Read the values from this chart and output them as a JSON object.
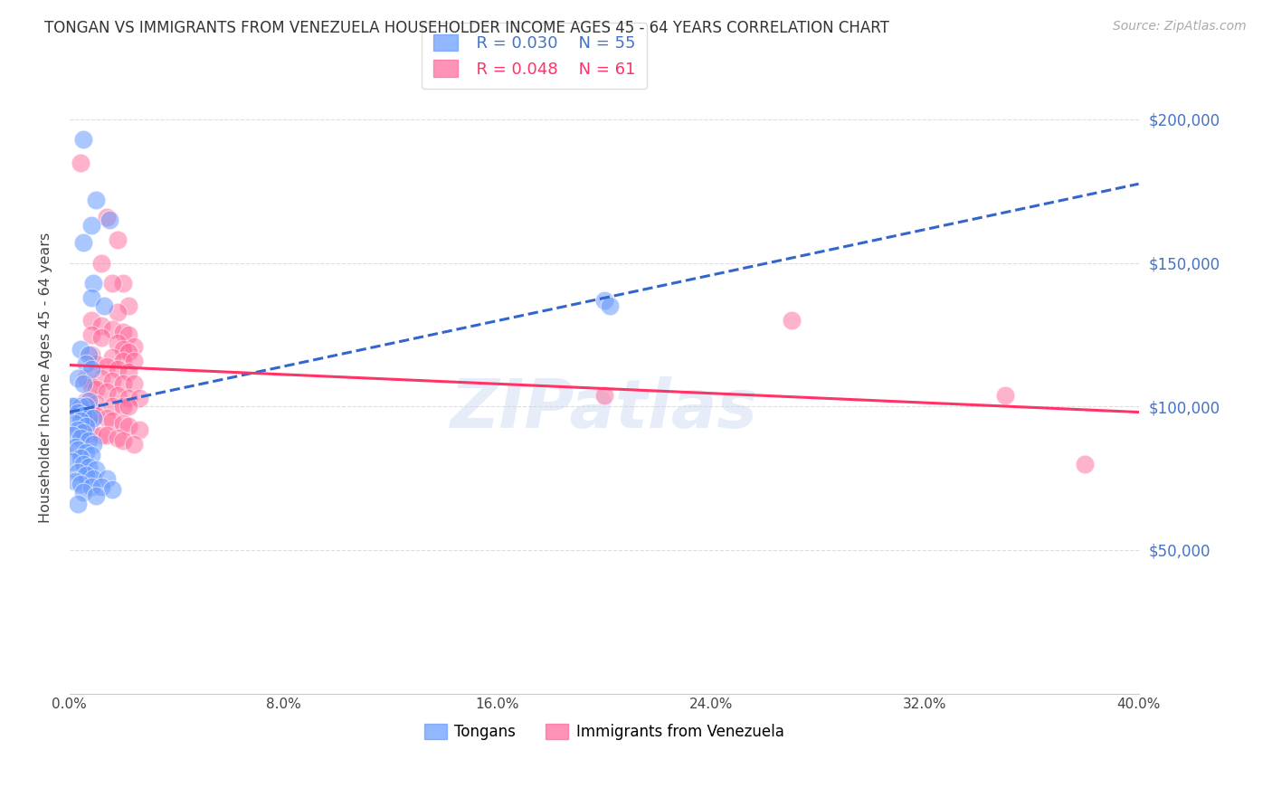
{
  "title": "TONGAN VS IMMIGRANTS FROM VENEZUELA HOUSEHOLDER INCOME AGES 45 - 64 YEARS CORRELATION CHART",
  "source": "Source: ZipAtlas.com",
  "ylabel": "Householder Income Ages 45 - 64 years",
  "xmin": 0.0,
  "xmax": 0.4,
  "ymin": 0,
  "ymax": 220000,
  "yticks": [
    0,
    50000,
    100000,
    150000,
    200000
  ],
  "ytick_labels": [
    "",
    "$50,000",
    "$100,000",
    "$150,000",
    "$200,000"
  ],
  "xticks": [
    0.0,
    0.08,
    0.16,
    0.24,
    0.32,
    0.4
  ],
  "legend_r1": "R = 0.030",
  "legend_n1": "N = 55",
  "legend_r2": "R = 0.048",
  "legend_n2": "N = 61",
  "blue_color": "#6699ff",
  "pink_color": "#ff6699",
  "blue_trend_color": "#3366cc",
  "pink_trend_color": "#ff3366",
  "blue_scatter_x": [
    0.005,
    0.01,
    0.015,
    0.008,
    0.005,
    0.009,
    0.008,
    0.013,
    0.004,
    0.007,
    0.006,
    0.008,
    0.003,
    0.005,
    0.007,
    0.002,
    0.004,
    0.006,
    0.001,
    0.003,
    0.005,
    0.007,
    0.009,
    0.004,
    0.002,
    0.006,
    0.003,
    0.005,
    0.001,
    0.004,
    0.007,
    0.009,
    0.002,
    0.003,
    0.006,
    0.008,
    0.004,
    0.001,
    0.005,
    0.007,
    0.01,
    0.003,
    0.006,
    0.009,
    0.014,
    0.002,
    0.004,
    0.008,
    0.012,
    0.016,
    0.005,
    0.01,
    0.003,
    0.2,
    0.202
  ],
  "blue_scatter_y": [
    193000,
    172000,
    165000,
    163000,
    157000,
    143000,
    138000,
    135000,
    120000,
    118000,
    115000,
    113000,
    110000,
    108000,
    102000,
    100000,
    100000,
    100000,
    100000,
    98000,
    97000,
    96000,
    96000,
    95000,
    94000,
    93000,
    92000,
    91000,
    90000,
    89000,
    88000,
    87000,
    86000,
    85000,
    84000,
    83000,
    82000,
    81000,
    80000,
    79000,
    78000,
    77000,
    76000,
    75000,
    75000,
    74000,
    73000,
    72000,
    72000,
    71000,
    70000,
    69000,
    66000,
    137000,
    135000
  ],
  "pink_scatter_x": [
    0.004,
    0.014,
    0.018,
    0.012,
    0.02,
    0.016,
    0.022,
    0.018,
    0.008,
    0.012,
    0.016,
    0.02,
    0.022,
    0.008,
    0.012,
    0.018,
    0.024,
    0.02,
    0.022,
    0.008,
    0.016,
    0.02,
    0.024,
    0.01,
    0.014,
    0.018,
    0.022,
    0.006,
    0.012,
    0.016,
    0.02,
    0.024,
    0.008,
    0.01,
    0.014,
    0.018,
    0.022,
    0.026,
    0.006,
    0.01,
    0.016,
    0.02,
    0.022,
    0.004,
    0.008,
    0.01,
    0.014,
    0.016,
    0.02,
    0.022,
    0.026,
    0.008,
    0.012,
    0.014,
    0.018,
    0.02,
    0.024,
    0.2,
    0.27,
    0.35,
    0.38
  ],
  "pink_scatter_y": [
    185000,
    166000,
    158000,
    150000,
    143000,
    143000,
    135000,
    133000,
    130000,
    128000,
    127000,
    126000,
    125000,
    125000,
    124000,
    122000,
    121000,
    120000,
    119000,
    118000,
    117000,
    116000,
    116000,
    115000,
    114000,
    113000,
    112000,
    110000,
    110000,
    109000,
    108000,
    108000,
    107000,
    106000,
    105000,
    104000,
    103000,
    103000,
    102000,
    101000,
    100000,
    100000,
    100000,
    99000,
    98000,
    97000,
    96000,
    95000,
    94000,
    93000,
    92000,
    91000,
    90000,
    90000,
    89000,
    88000,
    87000,
    104000,
    130000,
    104000,
    80000
  ],
  "watermark": "ZIPatlas",
  "background_color": "#ffffff",
  "grid_color": "#dddddd"
}
